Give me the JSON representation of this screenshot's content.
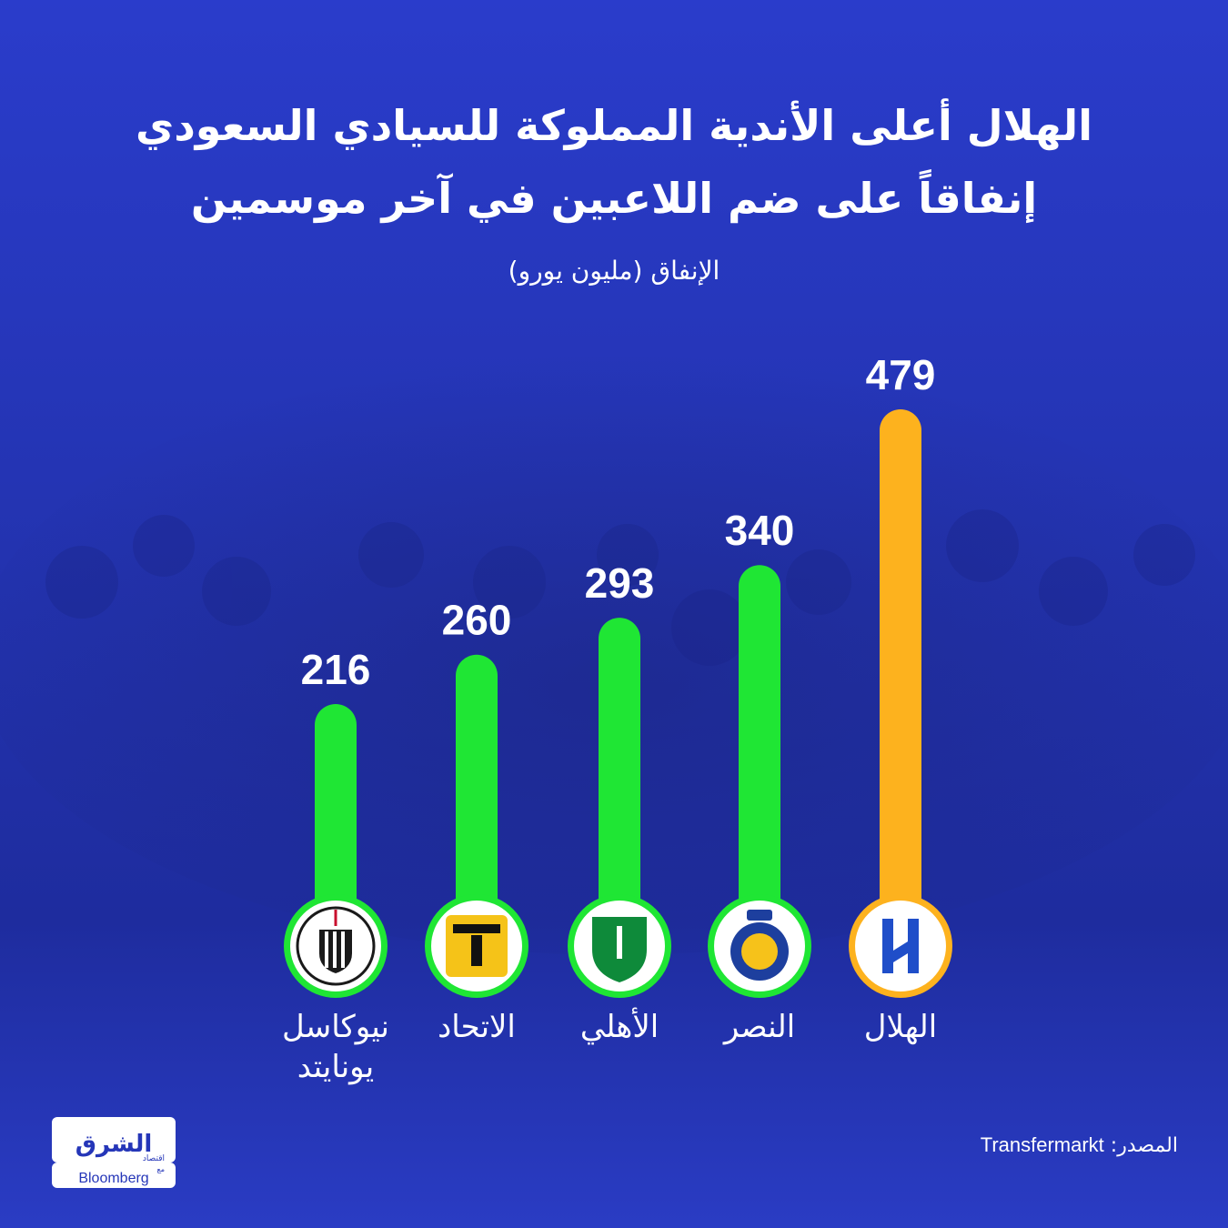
{
  "header": {
    "title_line1": "الهلال أعلى الأندية المملوكة للسيادي السعودي",
    "title_line2": "إنفاقاً على ضم اللاعبين في آخر موسمين",
    "subtitle": "الإنفاق (مليون يورو)"
  },
  "chart_data": {
    "type": "bar",
    "orientation": "vertical",
    "direction": "rtl",
    "categories": [
      "الهلال",
      "النصر",
      "الأهلي",
      "الاتحاد",
      "نيوكاسل يونايتد"
    ],
    "values": [
      479,
      340,
      293,
      260,
      216
    ],
    "title": "الهلال أعلى الأندية المملوكة للسيادي السعودي إنفاقاً على ضم اللاعبين في آخر موسمين",
    "ylabel": "الإنفاق (مليون يورو)",
    "ylim": [
      0,
      479
    ],
    "grid": false,
    "legend": "none",
    "colors": {
      "highlight": "#fdb21e",
      "default": "#1fe634"
    },
    "highlight_category": "الهلال",
    "data_labels": [
      "479",
      "340",
      "293",
      "260",
      "216"
    ],
    "category_label_lines": [
      [
        "الهلال"
      ],
      [
        "النصر"
      ],
      [
        "الأهلي"
      ],
      [
        "الاتحاد"
      ],
      [
        "نيوكاسل",
        "يونايتد"
      ]
    ],
    "icons": [
      "alhilal-crest-icon",
      "alnassr-crest-icon",
      "alahli-crest-icon",
      "ittihad-crest-icon",
      "newcastle-crest-icon"
    ]
  },
  "footer": {
    "source_label": "المصدر:",
    "source_name": "Transfermarkt",
    "logo_arabic": "الشرق",
    "logo_sub": "اقتصاد",
    "logo_with": "مع",
    "logo_partner": "Bloomberg"
  },
  "colors": {
    "background": "#2536b8",
    "background_dark": "#1a2690",
    "text": "#ffffff"
  }
}
